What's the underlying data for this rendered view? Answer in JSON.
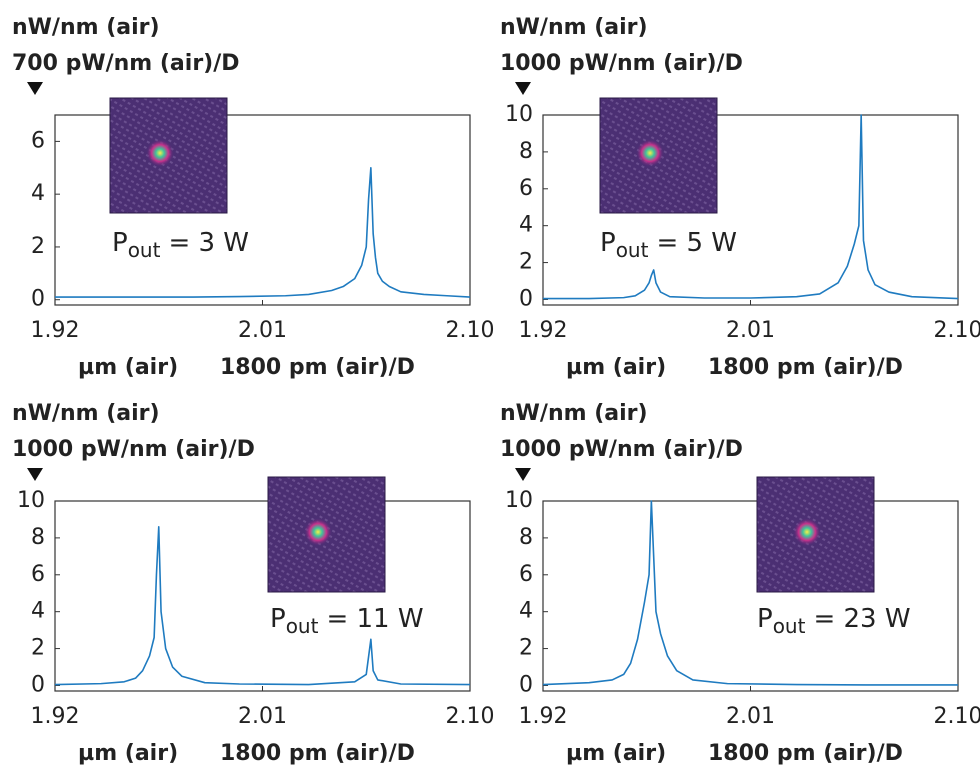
{
  "chart_data": [
    {
      "type": "line",
      "y_unit": "nW/nm (air)",
      "y_scale": "700 pW/nm (air)/D",
      "x_unit": "µm (air)",
      "x_scale": "1800 pm (air)/D",
      "annotation": {
        "symbol": "P",
        "subscript": "out",
        "text": "= 3 W"
      },
      "color": "#1f7bc0",
      "xlim": [
        1.92,
        2.1
      ],
      "xticks": [
        1.92,
        2.01,
        {
          "value": 2.1,
          "label": "2.10"
        }
      ],
      "ylim": [
        -0.2,
        7
      ],
      "yticks": [
        0,
        2,
        4,
        6
      ],
      "x": [
        1.92,
        1.94,
        1.96,
        1.98,
        2.0,
        2.02,
        2.03,
        2.04,
        2.045,
        2.05,
        2.053,
        2.055,
        2.056,
        2.057,
        2.058,
        2.059,
        2.06,
        2.062,
        2.065,
        2.07,
        2.08,
        2.09,
        2.1
      ],
      "values": [
        0.1,
        0.1,
        0.1,
        0.1,
        0.12,
        0.15,
        0.2,
        0.35,
        0.5,
        0.8,
        1.3,
        2.0,
        3.8,
        5.0,
        2.5,
        1.6,
        1.0,
        0.7,
        0.5,
        0.3,
        0.2,
        0.15,
        0.1
      ]
    },
    {
      "type": "line",
      "y_unit": "nW/nm (air)",
      "y_scale": "1000 pW/nm (air)/D",
      "x_unit": "µm (air)",
      "x_scale": "1800 pm (air)/D",
      "annotation": {
        "symbol": "P",
        "subscript": "out",
        "text": "= 5 W"
      },
      "color": "#1f7bc0",
      "xlim": [
        1.92,
        2.1
      ],
      "xticks": [
        1.92,
        2.01,
        {
          "value": 2.1,
          "label": "2.10"
        }
      ],
      "ylim": [
        -0.3,
        10
      ],
      "yticks": [
        0,
        2,
        4,
        6,
        8,
        10
      ],
      "x": [
        1.92,
        1.94,
        1.955,
        1.96,
        1.964,
        1.966,
        1.967,
        1.968,
        1.969,
        1.971,
        1.975,
        1.99,
        2.01,
        2.03,
        2.04,
        2.048,
        2.052,
        2.055,
        2.057,
        2.058,
        2.059,
        2.061,
        2.064,
        2.07,
        2.08,
        2.1
      ],
      "values": [
        0.05,
        0.05,
        0.1,
        0.2,
        0.5,
        0.9,
        1.3,
        1.6,
        0.9,
        0.4,
        0.15,
        0.08,
        0.08,
        0.15,
        0.3,
        0.9,
        1.8,
        3.0,
        4.0,
        10,
        3.2,
        1.6,
        0.8,
        0.4,
        0.15,
        0.05
      ]
    },
    {
      "type": "line",
      "y_unit": "nW/nm (air)",
      "y_scale": "1000 pW/nm (air)/D",
      "x_unit": "µm (air)",
      "x_scale": "1800 pm (air)/D",
      "annotation": {
        "symbol": "P",
        "subscript": "out",
        "text": "= 11 W"
      },
      "color": "#1f7bc0",
      "xlim": [
        1.92,
        2.1
      ],
      "xticks": [
        1.92,
        2.01,
        {
          "value": 2.1,
          "label": "2.10"
        }
      ],
      "ylim": [
        -0.3,
        10
      ],
      "yticks": [
        0,
        2,
        4,
        6,
        8,
        10
      ],
      "x": [
        1.92,
        1.94,
        1.95,
        1.955,
        1.958,
        1.961,
        1.963,
        1.964,
        1.965,
        1.966,
        1.968,
        1.971,
        1.975,
        1.985,
        2.0,
        2.03,
        2.05,
        2.055,
        2.057,
        2.058,
        2.06,
        2.07,
        2.1
      ],
      "values": [
        0.05,
        0.1,
        0.2,
        0.4,
        0.8,
        1.6,
        2.6,
        6.0,
        8.6,
        4.0,
        2.0,
        1.0,
        0.5,
        0.15,
        0.08,
        0.05,
        0.2,
        0.6,
        2.5,
        0.8,
        0.3,
        0.08,
        0.05
      ]
    },
    {
      "type": "line",
      "y_unit": "nW/nm (air)",
      "y_scale": "1000 pW/nm (air)/D",
      "x_unit": "µm (air)",
      "x_scale": "1800 pm (air)/D",
      "annotation": {
        "symbol": "P",
        "subscript": "out",
        "text": "= 23 W"
      },
      "color": "#1f7bc0",
      "xlim": [
        1.92,
        2.1
      ],
      "xticks": [
        1.92,
        2.01,
        {
          "value": 2.1,
          "label": "2.10"
        }
      ],
      "ylim": [
        -0.3,
        10
      ],
      "yticks": [
        0,
        2,
        4,
        6,
        8,
        10
      ],
      "x": [
        1.92,
        1.94,
        1.95,
        1.955,
        1.958,
        1.961,
        1.964,
        1.966,
        1.967,
        1.968,
        1.969,
        1.971,
        1.974,
        1.978,
        1.985,
        2.0,
        2.03,
        2.06,
        2.1
      ],
      "values": [
        0.05,
        0.15,
        0.3,
        0.6,
        1.2,
        2.5,
        4.5,
        6.0,
        10,
        7.0,
        4.0,
        2.8,
        1.6,
        0.8,
        0.3,
        0.1,
        0.05,
        0.03,
        0.03
      ]
    }
  ]
}
